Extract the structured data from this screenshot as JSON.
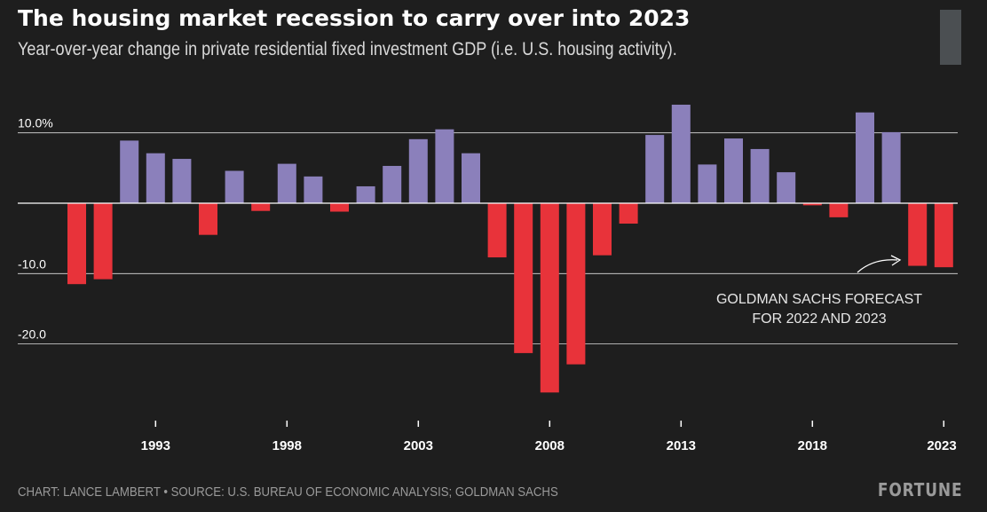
{
  "header": {
    "title": "The housing market recession to carry over into 2023",
    "subtitle": "Year-over-year change in private residential fixed investment GDP (i.e. U.S. housing activity)."
  },
  "footer": {
    "source": "CHART: LANCE LAMBERT • SOURCE: U.S. BUREAU OF ECONOMIC ANALYSIS; GOLDMAN SACHS",
    "brand": "FORTUNE"
  },
  "colors": {
    "positive": "#8b80bb",
    "negative": "#e8333a",
    "background": "#1e1e1e",
    "gridline": "#ffffff",
    "logo_bar": "#4b4f52"
  },
  "chart_data": {
    "type": "bar",
    "x": [
      1990,
      1991,
      1992,
      1993,
      1994,
      1995,
      1996,
      1997,
      1998,
      1999,
      2000,
      2001,
      2002,
      2003,
      2004,
      2005,
      2006,
      2007,
      2008,
      2009,
      2010,
      2011,
      2012,
      2013,
      2014,
      2015,
      2016,
      2017,
      2018,
      2019,
      2020,
      2021,
      2022,
      2023
    ],
    "values": [
      -11.5,
      -10.8,
      8.9,
      7.1,
      6.3,
      -4.5,
      4.6,
      -1.1,
      5.6,
      3.8,
      -1.2,
      2.4,
      5.3,
      9.1,
      10.5,
      7.1,
      -7.7,
      -21.3,
      -26.9,
      -22.9,
      -7.4,
      -2.9,
      9.7,
      14.0,
      5.5,
      9.2,
      7.7,
      4.4,
      -0.3,
      -2.0,
      12.9,
      10.1,
      -8.9,
      -9.1
    ],
    "y_ticks": [
      10.0,
      -10.0,
      -20.0
    ],
    "y_tick_labels": [
      "10.0%",
      "-10.0",
      "-20.0"
    ],
    "ylim": [
      -30,
      15
    ],
    "x_ticks": [
      1993,
      1998,
      2003,
      2008,
      2013,
      2018,
      2023
    ],
    "x_tick_labels": [
      "1993",
      "1998",
      "2003",
      "2008",
      "2013",
      "2018",
      "2023"
    ],
    "grid": true,
    "annotation": {
      "lines": [
        "GOLDMAN SACHS FORECAST",
        "FOR 2022 AND 2023"
      ],
      "points_to": [
        2022,
        2023
      ]
    }
  }
}
